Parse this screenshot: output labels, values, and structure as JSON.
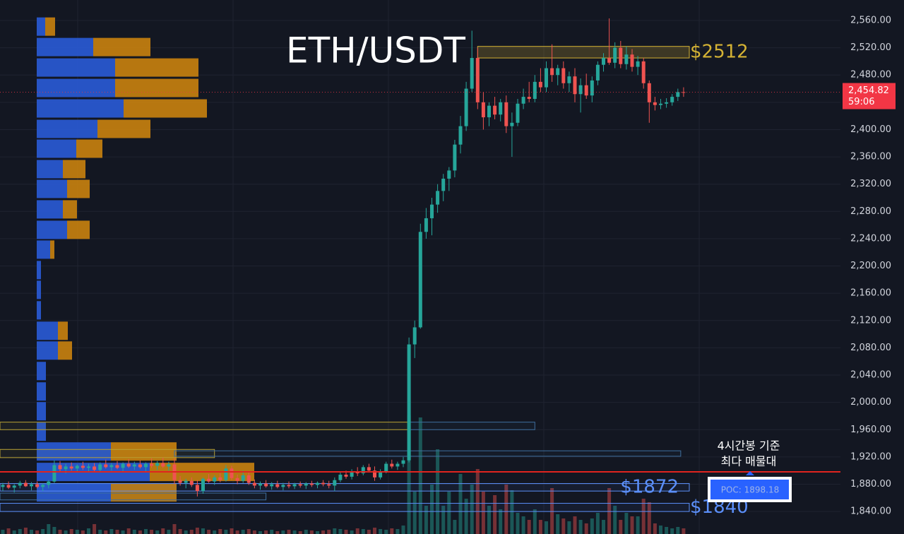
{
  "chart_data": {
    "type": "candlestick",
    "title": "ETH/USDT",
    "ylim": [
      1807,
      2590
    ],
    "yticks": [
      {
        "value": 1840,
        "label": "1,840.00"
      },
      {
        "value": 1880,
        "label": "1,880.00"
      },
      {
        "value": 1920,
        "label": "1,920.00"
      },
      {
        "value": 1960,
        "label": "1,960.00"
      },
      {
        "value": 2000,
        "label": "2,000.00"
      },
      {
        "value": 2040,
        "label": "2,040.00"
      },
      {
        "value": 2080,
        "label": "2,080.00"
      },
      {
        "value": 2120,
        "label": "2,120.00"
      },
      {
        "value": 2160,
        "label": "2,160.00"
      },
      {
        "value": 2200,
        "label": "2,200.00"
      },
      {
        "value": 2240,
        "label": "2,240.00"
      },
      {
        "value": 2280,
        "label": "2,280.00"
      },
      {
        "value": 2320,
        "label": "2,320.00"
      },
      {
        "value": 2360,
        "label": "2,360.00"
      },
      {
        "value": 2400,
        "label": "2,400.00"
      },
      {
        "value": 2440,
        "label": "2,440.00"
      },
      {
        "value": 2480,
        "label": "2,480.00"
      },
      {
        "value": 2520,
        "label": "2,520.00"
      },
      {
        "value": 2560,
        "label": "2,560.00"
      }
    ],
    "grid": true,
    "up_color": "#26a69a",
    "down_color": "#ef5350",
    "open": [
      1876,
      1879,
      1875,
      1878,
      1882,
      1877,
      1880,
      1876,
      1879,
      1884,
      1908,
      1902,
      1906,
      1903,
      1907,
      1904,
      1906,
      1901,
      1909,
      1905,
      1908,
      1904,
      1910,
      1906,
      1909,
      1905,
      1910,
      1907,
      1911,
      1906,
      1909,
      1886,
      1882,
      1885,
      1879,
      1870,
      1888,
      1884,
      1890,
      1886,
      1903,
      1889,
      1885,
      1893,
      1882,
      1878,
      1881,
      1877,
      1880,
      1876,
      1879,
      1877,
      1880,
      1878,
      1881,
      1879,
      1882,
      1880,
      1878,
      1886,
      1894,
      1891,
      1899,
      1896,
      1905,
      1900,
      1890,
      1899,
      1910,
      1906,
      1910,
      1915,
      2085,
      2110,
      2250,
      2270,
      2290,
      2310,
      2328,
      2340,
      2378,
      2405,
      2460,
      2505,
      2440,
      2418,
      2435,
      2422,
      2440,
      2405,
      2410,
      2438,
      2448,
      2445,
      2470,
      2462,
      2490,
      2480,
      2490,
      2468,
      2478,
      2452,
      2465,
      2450,
      2472,
      2495,
      2505,
      2498,
      2520,
      2496,
      2510,
      2492,
      2500,
      2468,
      2440,
      2436,
      2438,
      2440,
      2448,
      2455
    ],
    "high": [
      1882,
      1884,
      1880,
      1885,
      1886,
      1883,
      1884,
      1881,
      1886,
      1915,
      1914,
      1910,
      1912,
      1909,
      1913,
      1910,
      1911,
      1912,
      1916,
      1911,
      1914,
      1912,
      1917,
      1913,
      1915,
      1912,
      1918,
      1914,
      1919,
      1913,
      1918,
      1892,
      1888,
      1890,
      1886,
      1890,
      1895,
      1893,
      1896,
      1908,
      1907,
      1894,
      1900,
      1897,
      1887,
      1884,
      1886,
      1883,
      1885,
      1882,
      1884,
      1882,
      1884,
      1883,
      1885,
      1884,
      1886,
      1885,
      1890,
      1898,
      1900,
      1902,
      1905,
      1908,
      1910,
      1906,
      1902,
      1913,
      1916,
      1913,
      1920,
      2095,
      2120,
      2262,
      2285,
      2300,
      2320,
      2335,
      2345,
      2385,
      2420,
      2470,
      2545,
      2520,
      2455,
      2440,
      2448,
      2445,
      2450,
      2425,
      2445,
      2460,
      2470,
      2480,
      2490,
      2500,
      2525,
      2495,
      2500,
      2485,
      2490,
      2475,
      2482,
      2478,
      2500,
      2512,
      2563,
      2528,
      2530,
      2522,
      2518,
      2508,
      2505,
      2472,
      2448,
      2445,
      2446,
      2452,
      2460,
      2462
    ],
    "low": [
      1870,
      1873,
      1868,
      1874,
      1876,
      1871,
      1874,
      1870,
      1874,
      1882,
      1898,
      1896,
      1900,
      1897,
      1901,
      1898,
      1899,
      1897,
      1903,
      1900,
      1902,
      1899,
      1904,
      1901,
      1903,
      1899,
      1904,
      1901,
      1904,
      1900,
      1880,
      1878,
      1874,
      1876,
      1862,
      1866,
      1882,
      1879,
      1883,
      1884,
      1886,
      1880,
      1882,
      1879,
      1874,
      1872,
      1875,
      1872,
      1874,
      1871,
      1874,
      1873,
      1875,
      1873,
      1876,
      1874,
      1877,
      1874,
      1870,
      1883,
      1888,
      1887,
      1892,
      1893,
      1897,
      1885,
      1887,
      1896,
      1903,
      1901,
      1905,
      1912,
      2065,
      2108,
      2240,
      2245,
      2278,
      2295,
      2310,
      2330,
      2365,
      2398,
      2455,
      2430,
      2400,
      2405,
      2415,
      2412,
      2395,
      2360,
      2405,
      2430,
      2440,
      2440,
      2455,
      2455,
      2470,
      2465,
      2460,
      2455,
      2440,
      2425,
      2445,
      2440,
      2465,
      2485,
      2495,
      2490,
      2490,
      2488,
      2485,
      2480,
      2460,
      2410,
      2428,
      2430,
      2432,
      2435,
      2442,
      2448
    ],
    "close": [
      1879,
      1875,
      1878,
      1882,
      1877,
      1880,
      1876,
      1879,
      1884,
      1908,
      1902,
      1906,
      1903,
      1907,
      1904,
      1906,
      1901,
      1909,
      1905,
      1908,
      1904,
      1910,
      1906,
      1909,
      1905,
      1910,
      1907,
      1911,
      1906,
      1909,
      1886,
      1882,
      1885,
      1879,
      1870,
      1888,
      1884,
      1890,
      1886,
      1903,
      1889,
      1885,
      1893,
      1882,
      1878,
      1881,
      1877,
      1880,
      1876,
      1879,
      1877,
      1880,
      1878,
      1881,
      1879,
      1882,
      1880,
      1878,
      1886,
      1894,
      1891,
      1899,
      1896,
      1905,
      1900,
      1890,
      1899,
      1910,
      1906,
      1910,
      1915,
      2085,
      2110,
      2250,
      2270,
      2290,
      2310,
      2328,
      2340,
      2378,
      2405,
      2460,
      2505,
      2440,
      2418,
      2435,
      2422,
      2440,
      2405,
      2410,
      2438,
      2448,
      2445,
      2470,
      2462,
      2490,
      2480,
      2490,
      2468,
      2478,
      2452,
      2465,
      2450,
      2472,
      2495,
      2505,
      2498,
      2520,
      2496,
      2510,
      2492,
      2500,
      2468,
      2440,
      2436,
      2438,
      2440,
      2448,
      2455,
      2454.82
    ],
    "volume": [
      6,
      8,
      5,
      7,
      9,
      6,
      5,
      7,
      14,
      10,
      6,
      5,
      7,
      6,
      5,
      8,
      14,
      6,
      5,
      7,
      6,
      5,
      8,
      6,
      5,
      7,
      6,
      5,
      8,
      6,
      14,
      7,
      5,
      6,
      9,
      8,
      6,
      5,
      7,
      6,
      8,
      5,
      6,
      7,
      5,
      4,
      5,
      6,
      4,
      5,
      6,
      5,
      4,
      6,
      5,
      4,
      5,
      6,
      8,
      7,
      6,
      5,
      8,
      7,
      6,
      9,
      7,
      6,
      8,
      7,
      12,
      168,
      60,
      165,
      40,
      70,
      120,
      40,
      60,
      20,
      85,
      50,
      70,
      92,
      60,
      40,
      55,
      35,
      70,
      62,
      30,
      25,
      20,
      35,
      20,
      18,
      65,
      28,
      22,
      18,
      25,
      20,
      15,
      22,
      30,
      20,
      65,
      40,
      20,
      30,
      25,
      25,
      50,
      45,
      15,
      12,
      10,
      8,
      10,
      8
    ],
    "profile": {
      "prices": [
        2551,
        2521,
        2491,
        2461,
        2431,
        2401,
        2372,
        2342,
        2313,
        2283,
        2253,
        2224,
        2194,
        2165,
        2135,
        2105,
        2076,
        2046,
        2016,
        1987,
        1957,
        1928,
        1898,
        1868
      ],
      "buy": [
        12,
        80,
        111,
        111,
        123,
        86,
        56,
        37,
        43,
        37,
        43,
        19,
        6,
        6,
        6,
        30,
        30,
        13,
        13,
        13,
        13,
        105,
        160,
        105
      ],
      "sell": [
        14,
        81,
        118,
        118,
        118,
        75,
        37,
        32,
        32,
        20,
        32,
        6,
        0,
        0,
        0,
        14,
        20,
        0,
        0,
        0,
        0,
        93,
        148,
        93
      ],
      "buy_color": "#2a5bd7",
      "sell_color": "#c9820f"
    },
    "zones": [
      {
        "low": 2505,
        "high": 2522,
        "color": "#d4b234",
        "start": 83,
        "end": 120,
        "label": "$2512"
      },
      {
        "low": 1960,
        "high": 1971,
        "color": "#b9a234",
        "start": -1,
        "end": 71
      },
      {
        "low": 1960,
        "high": 1971,
        "color": "#3f6f9f",
        "start": 71,
        "end": 93
      },
      {
        "low": 1919,
        "high": 1931,
        "color": "#b9a234",
        "start": -1,
        "end": 37
      },
      {
        "low": 1921,
        "high": 1929,
        "color": "#3f6f9f",
        "start": 30,
        "end": 118.5
      },
      {
        "low": 1870,
        "high": 1881,
        "color": "#5b8ff9",
        "start": -1,
        "end": 120,
        "label": "$1872"
      },
      {
        "low": 1857,
        "high": 1867,
        "color": "#3f6f9f",
        "start": -1,
        "end": 46
      },
      {
        "low": 1840,
        "high": 1852,
        "color": "#5b8ff9",
        "start": -1,
        "end": 120,
        "label": "$1840"
      }
    ],
    "poc": {
      "value": 1898.18,
      "label": "POC: 1898.18",
      "color": "#e0241f"
    },
    "last_price": {
      "value": 2454.82,
      "label": "2,454.82",
      "countdown": "59:06",
      "color": "#f23645"
    },
    "annotation": [
      "4시간봉 기준",
      "최다 매물대"
    ]
  }
}
